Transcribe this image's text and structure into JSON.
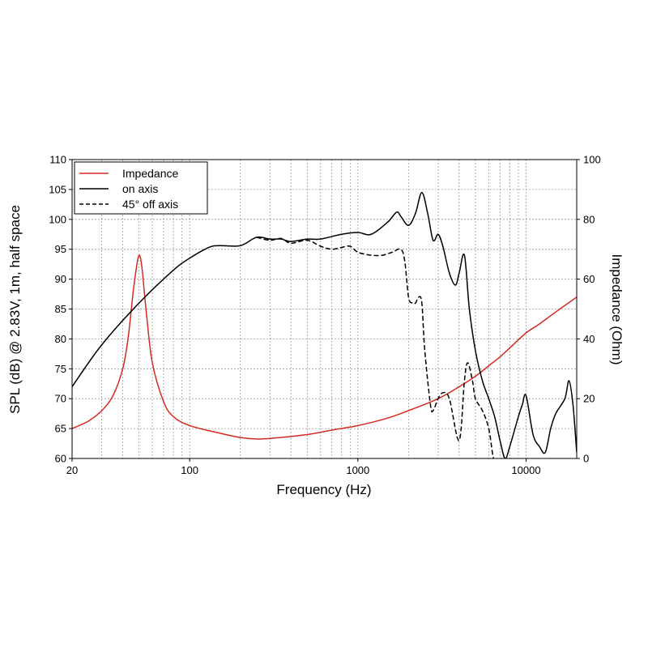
{
  "chart_data": {
    "type": "line",
    "xlabel": "Frequency (Hz)",
    "ylabel": "SPL (dB) @ 2.83V, 1m, half space",
    "y2label": "Impedance (Ohm)",
    "xscale": "log",
    "xlim": [
      20,
      20000
    ],
    "ylim": [
      60,
      110
    ],
    "y2lim": [
      0,
      100
    ],
    "x_tick_labels": [
      "20",
      "100",
      "1000",
      "10000"
    ],
    "y_tick_labels": [
      "60",
      "65",
      "70",
      "75",
      "80",
      "85",
      "90",
      "95",
      "100",
      "105",
      "110"
    ],
    "y2_tick_labels": [
      "0",
      "20",
      "40",
      "60",
      "80",
      "100"
    ],
    "grid": true,
    "legend_position": "top-left",
    "colors": {
      "impedance": "#d42a20",
      "on_axis": "#000000",
      "off_axis": "#000000"
    },
    "series": [
      {
        "name": "Impedance",
        "axis": "right",
        "style": "solid",
        "color": "#d42a20",
        "x": [
          20,
          25,
          30,
          35,
          40,
          43,
          46,
          48,
          50,
          52,
          55,
          60,
          70,
          80,
          100,
          150,
          200,
          250,
          300,
          500,
          700,
          1000,
          1500,
          2000,
          3000,
          4000,
          5000,
          6000,
          7000,
          8000,
          10000,
          12000,
          15000,
          20000
        ],
        "values": [
          10,
          12.5,
          16,
          21,
          30,
          40,
          55,
          63,
          68,
          64,
          50,
          32,
          19,
          14,
          11,
          8.5,
          7,
          6.5,
          6.7,
          8,
          9.5,
          11,
          13.5,
          16,
          20,
          24,
          27.5,
          31,
          34,
          37,
          42,
          45,
          49,
          54
        ]
      },
      {
        "name": "on axis",
        "axis": "left",
        "style": "solid",
        "color": "#000000",
        "x": [
          20,
          30,
          50,
          80,
          100,
          130,
          150,
          200,
          250,
          300,
          350,
          400,
          500,
          600,
          800,
          1000,
          1200,
          1500,
          1700,
          1800,
          2000,
          2200,
          2400,
          2600,
          2800,
          3000,
          3200,
          3500,
          3800,
          4000,
          4300,
          4600,
          5000,
          5500,
          6000,
          6500,
          7000,
          7500,
          8000,
          9000,
          9500,
          10000,
          11000,
          12000,
          13000,
          14000,
          15000,
          17000,
          18000,
          19000,
          20000
        ],
        "values": [
          72,
          79,
          86,
          91.5,
          93.5,
          95.3,
          95.6,
          95.6,
          97,
          96.7,
          96.7,
          96.3,
          96.7,
          96.7,
          97.5,
          97.8,
          97.5,
          99.5,
          101.2,
          100.5,
          99,
          101,
          104.5,
          101,
          96.5,
          97.5,
          95.5,
          91,
          89,
          91,
          94,
          85,
          78,
          73,
          70,
          67,
          63,
          60,
          62,
          67,
          69,
          70.5,
          64,
          62,
          61,
          65,
          67.5,
          70,
          73,
          69,
          61
        ]
      },
      {
        "name": "45° off axis",
        "axis": "left",
        "style": "dashed",
        "color": "#000000",
        "x": [
          250,
          300,
          350,
          400,
          500,
          600,
          700,
          800,
          900,
          1000,
          1200,
          1400,
          1600,
          1800,
          1900,
          2000,
          2100,
          2200,
          2300,
          2400,
          2500,
          2700,
          2800,
          3000,
          3200,
          3500,
          4000,
          4300,
          4500,
          4800,
          5000,
          5500,
          6000,
          6400,
          6700
        ],
        "values": [
          97,
          96.5,
          96.8,
          96,
          96.5,
          95.5,
          95,
          95.3,
          95.5,
          94.5,
          94,
          94,
          94.5,
          95,
          93,
          87,
          86,
          86,
          87,
          86,
          78,
          69,
          68,
          70,
          71,
          70,
          63,
          73,
          76,
          73,
          70,
          68,
          65,
          60,
          60
        ]
      }
    ]
  }
}
